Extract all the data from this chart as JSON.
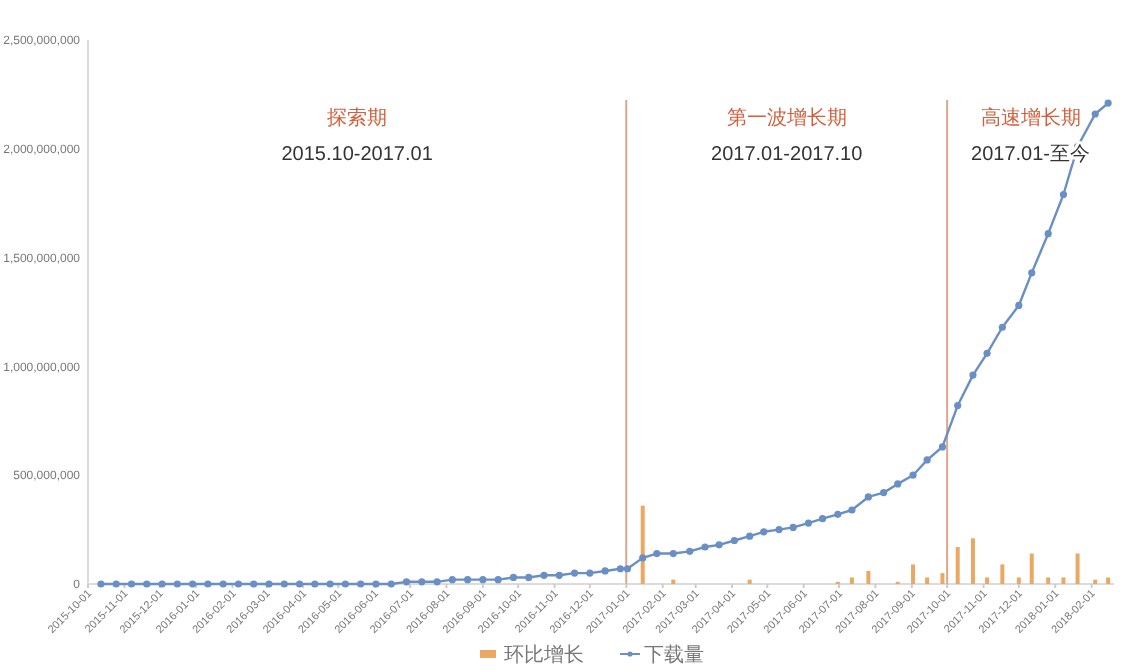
{
  "chart_data": {
    "type": "line",
    "x": [
      "2015-10-12",
      "2015-10-25",
      "2015-11-07",
      "2015-11-20",
      "2015-12-03",
      "2015-12-16",
      "2015-12-29",
      "2016-01-11",
      "2016-01-24",
      "2016-02-06",
      "2016-02-19",
      "2016-03-03",
      "2016-03-16",
      "2016-03-29",
      "2016-04-11",
      "2016-04-24",
      "2016-05-07",
      "2016-05-20",
      "2016-06-02",
      "2016-06-15",
      "2016-06-28",
      "2016-07-11",
      "2016-07-24",
      "2016-08-06",
      "2016-08-19",
      "2016-09-01",
      "2016-09-14",
      "2016-09-27",
      "2016-10-10",
      "2016-10-23",
      "2016-11-05",
      "2016-11-18",
      "2016-12-01",
      "2016-12-14",
      "2016-12-27",
      "2017-01-02",
      "2017-01-15",
      "2017-01-27",
      "2017-02-10",
      "2017-02-24",
      "2017-03-09",
      "2017-03-21",
      "2017-04-03",
      "2017-04-16",
      "2017-04-28",
      "2017-05-11",
      "2017-05-23",
      "2017-06-05",
      "2017-06-17",
      "2017-06-30",
      "2017-07-12",
      "2017-07-26",
      "2017-08-08",
      "2017-08-20",
      "2017-09-02",
      "2017-09-14",
      "2017-09-27",
      "2017-10-10",
      "2017-10-23",
      "2017-11-04",
      "2017-11-17",
      "2017-12-01",
      "2017-12-12",
      "2017-12-26",
      "2018-01-08",
      "2018-01-20",
      "2018-02-04",
      "2018-02-15"
    ],
    "series": [
      {
        "name": "环比增长",
        "type": "bar",
        "color": "#eaa865",
        "values": [
          null,
          null,
          null,
          null,
          null,
          null,
          null,
          null,
          null,
          null,
          null,
          null,
          null,
          null,
          null,
          null,
          null,
          null,
          null,
          null,
          null,
          null,
          null,
          null,
          null,
          null,
          null,
          null,
          null,
          null,
          null,
          null,
          null,
          null,
          null,
          null,
          360000000,
          null,
          20000000,
          null,
          null,
          null,
          null,
          20000000,
          null,
          null,
          null,
          null,
          null,
          10000000,
          30000000,
          60000000,
          null,
          10000000,
          90000000,
          30000000,
          50000000,
          170000000,
          210000000,
          30000000,
          90000000,
          30000000,
          140000000,
          30000000,
          30000000,
          140000000,
          20000000,
          30000000
        ]
      },
      {
        "name": "下载量",
        "color": "#6a8fc4",
        "values": [
          0,
          0,
          0,
          0,
          0,
          0,
          0,
          0,
          0,
          0,
          0,
          0,
          0,
          0,
          0,
          0,
          0,
          0,
          0,
          0,
          10000000,
          10000000,
          10000000,
          20000000,
          20000000,
          20000000,
          20000000,
          30000000,
          30000000,
          40000000,
          40000000,
          50000000,
          50000000,
          60000000,
          70000000,
          70000000,
          120000000,
          140000000,
          140000000,
          150000000,
          170000000,
          180000000,
          200000000,
          220000000,
          240000000,
          250000000,
          260000000,
          280000000,
          300000000,
          320000000,
          340000000,
          400000000,
          420000000,
          460000000,
          500000000,
          570000000,
          630000000,
          820000000,
          960000000,
          1060000000,
          1180000000,
          1280000000,
          1430000000,
          1610000000,
          1790000000,
          2010000000,
          2160000000,
          2210000000
        ]
      }
    ],
    "xlim": [
      "2015-10-01",
      "2018-02-20"
    ],
    "xticks": [
      "2015-10-01",
      "2015-11-01",
      "2015-12-01",
      "2016-01-01",
      "2016-02-01",
      "2016-03-01",
      "2016-04-01",
      "2016-05-01",
      "2016-06-01",
      "2016-07-01",
      "2016-08-01",
      "2016-09-01",
      "2016-10-01",
      "2016-11-01",
      "2016-12-01",
      "2017-01-01",
      "2017-02-01",
      "2017-03-01",
      "2017-04-01",
      "2017-05-01",
      "2017-06-01",
      "2017-07-01",
      "2017-08-01",
      "2017-09-01",
      "2017-10-01",
      "2017-11-01",
      "2017-12-01",
      "2018-01-01",
      "2018-02-01"
    ],
    "ylim": [
      0,
      2500000000
    ],
    "yticks": [
      {
        "value": 0,
        "label": "0"
      },
      {
        "value": 500000000,
        "label": "500,000,000"
      },
      {
        "value": 1000000000,
        "label": "1,000,000,000"
      },
      {
        "value": 1500000000,
        "label": "1,500,000,000"
      },
      {
        "value": 2000000000,
        "label": "2,000,000,000"
      },
      {
        "value": 2500000000,
        "label": "2,500,000,000"
      }
    ],
    "ref_lines": [
      {
        "axis": "x",
        "value": "2017-01-01",
        "color": "#dba88c"
      },
      {
        "axis": "x",
        "value": "2017-10-01",
        "color": "#dba88c"
      }
    ],
    "annotations": [
      "探索期",
      "2015.10-2017.01",
      "第一波增长期",
      "2017.01-2017.10",
      "高速增长期",
      "2017.01-至今"
    ],
    "marker": "circle",
    "grid": false,
    "legend": "bottom"
  }
}
